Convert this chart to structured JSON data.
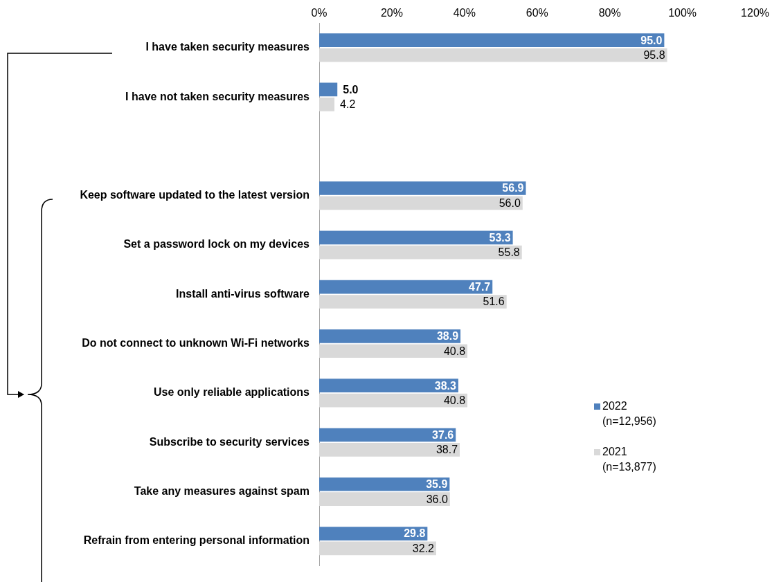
{
  "chart_data": {
    "type": "bar",
    "orientation": "horizontal",
    "categories": [
      "I have taken security measures",
      "I have not taken security measures",
      null,
      "Keep software updated to the latest version",
      "Set a password lock on my devices",
      "Install anti-virus software",
      "Do not connect to unknown Wi-Fi networks",
      "Use only reliable applications",
      "Subscribe to security services",
      "Take any measures against spam",
      "Refrain from entering personal information"
    ],
    "series": [
      {
        "name": "2022 (n=12,956)",
        "color": "#4f81bd",
        "values": [
          95.0,
          5.0,
          null,
          56.9,
          53.3,
          47.7,
          38.9,
          38.3,
          37.6,
          35.9,
          29.8
        ],
        "value_labels": [
          "95.0",
          "5.0",
          null,
          "56.9",
          "53.3",
          "47.7",
          "38.9",
          "38.3",
          "37.6",
          "35.9",
          "29.8"
        ]
      },
      {
        "name": "2021 (n=13,877)",
        "color": "#d9d9d9",
        "values": [
          95.8,
          4.2,
          null,
          56.0,
          55.8,
          51.6,
          40.8,
          40.8,
          38.7,
          36.0,
          32.2
        ],
        "value_labels": [
          "95.8",
          "4.2",
          null,
          "56.0",
          "55.8",
          "51.6",
          "40.8",
          "40.8",
          "38.7",
          "36.0",
          "32.2"
        ]
      }
    ],
    "xlim": [
      0,
      120
    ],
    "xticks": [
      {
        "value": 0,
        "label": "0%"
      },
      {
        "value": 20,
        "label": "20%"
      },
      {
        "value": 40,
        "label": "40%"
      },
      {
        "value": 60,
        "label": "60%"
      },
      {
        "value": 80,
        "label": "80%"
      },
      {
        "value": 100,
        "label": "100%"
      },
      {
        "value": 120,
        "label": "120%"
      }
    ],
    "legend": "right",
    "grid": false
  }
}
